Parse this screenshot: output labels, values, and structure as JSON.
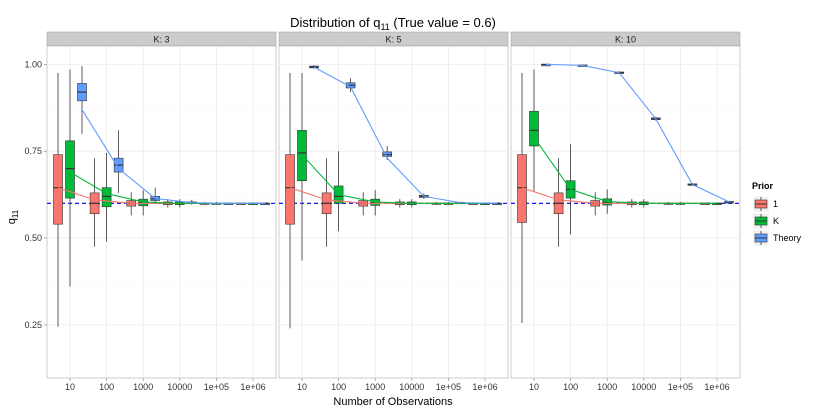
{
  "chart_data": {
    "type": "boxplot",
    "title_main": "Distribution of q",
    "title_sub": "11",
    "title_tail": " (True value = 0.6)",
    "xlabel": "Number of Observations",
    "ylabel_main": "q",
    "ylabel_sub": "11",
    "ylim": [
      0.1,
      1.05
    ],
    "y_ticks": [
      0.25,
      0.5,
      0.75,
      1.0
    ],
    "y_tick_labels": [
      "0.25",
      "0.50",
      "0.75",
      "1.00"
    ],
    "x_ticks": [
      10,
      100,
      1000,
      10000,
      100000,
      1000000
    ],
    "x_tick_labels": [
      "10",
      "100",
      "1000",
      "10000",
      "1e+05",
      "1e+06"
    ],
    "true_value": 0.6,
    "legend": {
      "title": "Prior",
      "items": [
        {
          "label": "1",
          "color": "#F8766D"
        },
        {
          "label": "K",
          "color": "#00BA38"
        },
        {
          "label": "Theory",
          "color": "#619CFF"
        }
      ]
    },
    "colors": {
      "hline": "#0000ff",
      "panel_bg": "#ffffff",
      "grid": "#ebebeb",
      "strip_bg": "#cccccc",
      "line_1": "#F8766D",
      "line_K": "#00BA38",
      "line_Theory": "#619CFF"
    },
    "panels": [
      {
        "strip": "K: 3",
        "series": [
          {
            "name": "1",
            "boxes": [
              {
                "n": 10,
                "lo": 0.245,
                "q1": 0.54,
                "med": 0.645,
                "q3": 0.74,
                "hi": 0.975
              },
              {
                "n": 100,
                "lo": 0.475,
                "q1": 0.57,
                "med": 0.6,
                "q3": 0.63,
                "hi": 0.73
              },
              {
                "n": 1000,
                "lo": 0.565,
                "q1": 0.592,
                "med": 0.6,
                "q3": 0.608,
                "hi": 0.632
              },
              {
                "n": 10000,
                "lo": 0.588,
                "q1": 0.596,
                "med": 0.6,
                "q3": 0.604,
                "hi": 0.612
              },
              {
                "n": 100000,
                "lo": 0.596,
                "q1": 0.599,
                "med": 0.6,
                "q3": 0.601,
                "hi": 0.604
              },
              {
                "n": 1000000,
                "lo": 0.598,
                "q1": 0.5995,
                "med": 0.6,
                "q3": 0.6005,
                "hi": 0.602
              }
            ]
          },
          {
            "name": "K",
            "boxes": [
              {
                "n": 10,
                "lo": 0.36,
                "q1": 0.615,
                "med": 0.7,
                "q3": 0.78,
                "hi": 0.985
              },
              {
                "n": 100,
                "lo": 0.49,
                "q1": 0.59,
                "med": 0.62,
                "q3": 0.645,
                "hi": 0.745
              },
              {
                "n": 1000,
                "lo": 0.565,
                "q1": 0.593,
                "med": 0.603,
                "q3": 0.612,
                "hi": 0.638
              },
              {
                "n": 10000,
                "lo": 0.588,
                "q1": 0.596,
                "med": 0.6,
                "q3": 0.604,
                "hi": 0.612
              },
              {
                "n": 100000,
                "lo": 0.596,
                "q1": 0.599,
                "med": 0.6,
                "q3": 0.601,
                "hi": 0.604
              },
              {
                "n": 1000000,
                "lo": 0.598,
                "q1": 0.5995,
                "med": 0.6,
                "q3": 0.6005,
                "hi": 0.602
              }
            ]
          },
          {
            "name": "Theory",
            "boxes": [
              {
                "n": 10,
                "lo": 0.8,
                "q1": 0.895,
                "med": 0.92,
                "q3": 0.945,
                "hi": 0.995
              },
              {
                "n": 100,
                "lo": 0.63,
                "q1": 0.69,
                "med": 0.71,
                "q3": 0.73,
                "hi": 0.81
              },
              {
                "n": 1000,
                "lo": 0.598,
                "q1": 0.608,
                "med": 0.613,
                "q3": 0.62,
                "hi": 0.645
              },
              {
                "n": 10000,
                "lo": 0.596,
                "q1": 0.6,
                "med": 0.602,
                "q3": 0.604,
                "hi": 0.61
              },
              {
                "n": 100000,
                "lo": 0.598,
                "q1": 0.5995,
                "med": 0.6,
                "q3": 0.6005,
                "hi": 0.602
              },
              {
                "n": 1000000,
                "lo": 0.599,
                "q1": 0.5997,
                "med": 0.6,
                "q3": 0.6003,
                "hi": 0.601
              }
            ]
          }
        ],
        "lines": [
          {
            "name": "1",
            "points": [
              0.645,
              0.61,
              0.6,
              0.6,
              0.6,
              0.6
            ]
          },
          {
            "name": "K",
            "points": [
              0.69,
              0.628,
              0.604,
              0.6,
              0.6,
              0.6
            ]
          },
          {
            "name": "Theory",
            "points": [
              0.87,
              0.7,
              0.614,
              0.602,
              0.6,
              0.6
            ]
          }
        ]
      },
      {
        "strip": "K: 5",
        "series": [
          {
            "name": "1",
            "boxes": [
              {
                "n": 10,
                "lo": 0.24,
                "q1": 0.54,
                "med": 0.645,
                "q3": 0.74,
                "hi": 0.975
              },
              {
                "n": 100,
                "lo": 0.475,
                "q1": 0.57,
                "med": 0.6,
                "q3": 0.63,
                "hi": 0.73
              },
              {
                "n": 1000,
                "lo": 0.565,
                "q1": 0.592,
                "med": 0.6,
                "q3": 0.608,
                "hi": 0.632
              },
              {
                "n": 10000,
                "lo": 0.588,
                "q1": 0.596,
                "med": 0.6,
                "q3": 0.604,
                "hi": 0.612
              },
              {
                "n": 100000,
                "lo": 0.596,
                "q1": 0.599,
                "med": 0.6,
                "q3": 0.601,
                "hi": 0.604
              },
              {
                "n": 1000000,
                "lo": 0.598,
                "q1": 0.5995,
                "med": 0.6,
                "q3": 0.6005,
                "hi": 0.602
              }
            ]
          },
          {
            "name": "K",
            "boxes": [
              {
                "n": 10,
                "lo": 0.435,
                "q1": 0.665,
                "med": 0.745,
                "q3": 0.81,
                "hi": 0.975
              },
              {
                "n": 100,
                "lo": 0.52,
                "q1": 0.6,
                "med": 0.62,
                "q3": 0.65,
                "hi": 0.75
              },
              {
                "n": 1000,
                "lo": 0.565,
                "q1": 0.594,
                "med": 0.602,
                "q3": 0.612,
                "hi": 0.638
              },
              {
                "n": 10000,
                "lo": 0.588,
                "q1": 0.596,
                "med": 0.6,
                "q3": 0.604,
                "hi": 0.612
              },
              {
                "n": 100000,
                "lo": 0.596,
                "q1": 0.599,
                "med": 0.6,
                "q3": 0.601,
                "hi": 0.604
              },
              {
                "n": 1000000,
                "lo": 0.598,
                "q1": 0.5995,
                "med": 0.6,
                "q3": 0.6005,
                "hi": 0.602
              }
            ]
          },
          {
            "name": "Theory",
            "boxes": [
              {
                "n": 10,
                "lo": 0.988,
                "q1": 0.99,
                "med": 0.992,
                "q3": 0.995,
                "hi": 0.998
              },
              {
                "n": 100,
                "lo": 0.92,
                "q1": 0.932,
                "med": 0.94,
                "q3": 0.947,
                "hi": 0.96
              },
              {
                "n": 1000,
                "lo": 0.725,
                "q1": 0.735,
                "med": 0.74,
                "q3": 0.748,
                "hi": 0.765
              },
              {
                "n": 10000,
                "lo": 0.613,
                "q1": 0.617,
                "med": 0.62,
                "q3": 0.623,
                "hi": 0.628
              },
              {
                "n": 100000,
                "lo": 0.6,
                "q1": 0.601,
                "med": 0.602,
                "q3": 0.603,
                "hi": 0.604
              },
              {
                "n": 1000000,
                "lo": 0.599,
                "q1": 0.5997,
                "med": 0.6,
                "q3": 0.6003,
                "hi": 0.601
              }
            ]
          }
        ],
        "lines": [
          {
            "name": "1",
            "points": [
              0.645,
              0.61,
              0.6,
              0.6,
              0.6,
              0.6
            ]
          },
          {
            "name": "K",
            "points": [
              0.74,
              0.625,
              0.604,
              0.6,
              0.6,
              0.6
            ]
          },
          {
            "name": "Theory",
            "points": [
              0.992,
              0.935,
              0.73,
              0.62,
              0.602,
              0.6
            ]
          }
        ]
      },
      {
        "strip": "K: 10",
        "series": [
          {
            "name": "1",
            "boxes": [
              {
                "n": 10,
                "lo": 0.255,
                "q1": 0.545,
                "med": 0.645,
                "q3": 0.74,
                "hi": 0.975
              },
              {
                "n": 100,
                "lo": 0.475,
                "q1": 0.57,
                "med": 0.6,
                "q3": 0.63,
                "hi": 0.73
              },
              {
                "n": 1000,
                "lo": 0.565,
                "q1": 0.592,
                "med": 0.6,
                "q3": 0.608,
                "hi": 0.632
              },
              {
                "n": 10000,
                "lo": 0.588,
                "q1": 0.596,
                "med": 0.6,
                "q3": 0.604,
                "hi": 0.612
              },
              {
                "n": 100000,
                "lo": 0.596,
                "q1": 0.599,
                "med": 0.6,
                "q3": 0.601,
                "hi": 0.604
              },
              {
                "n": 1000000,
                "lo": 0.598,
                "q1": 0.5995,
                "med": 0.6,
                "q3": 0.6005,
                "hi": 0.602
              }
            ]
          },
          {
            "name": "K",
            "boxes": [
              {
                "n": 10,
                "lo": 0.635,
                "q1": 0.765,
                "med": 0.81,
                "q3": 0.865,
                "hi": 0.985
              },
              {
                "n": 100,
                "lo": 0.51,
                "q1": 0.615,
                "med": 0.64,
                "q3": 0.665,
                "hi": 0.77
              },
              {
                "n": 1000,
                "lo": 0.57,
                "q1": 0.595,
                "med": 0.603,
                "q3": 0.613,
                "hi": 0.64
              },
              {
                "n": 10000,
                "lo": 0.588,
                "q1": 0.596,
                "med": 0.6,
                "q3": 0.604,
                "hi": 0.612
              },
              {
                "n": 100000,
                "lo": 0.596,
                "q1": 0.599,
                "med": 0.6,
                "q3": 0.601,
                "hi": 0.604
              },
              {
                "n": 1000000,
                "lo": 0.598,
                "q1": 0.5995,
                "med": 0.6,
                "q3": 0.6005,
                "hi": 0.602
              }
            ]
          },
          {
            "name": "Theory",
            "boxes": [
              {
                "n": 10,
                "lo": 0.998,
                "q1": 0.999,
                "med": 1.0,
                "q3": 1.0,
                "hi": 1.0
              },
              {
                "n": 100,
                "lo": 0.995,
                "q1": 0.996,
                "med": 0.997,
                "q3": 0.998,
                "hi": 0.999
              },
              {
                "n": 1000,
                "lo": 0.972,
                "q1": 0.974,
                "med": 0.976,
                "q3": 0.978,
                "hi": 0.98
              },
              {
                "n": 10000,
                "lo": 0.838,
                "q1": 0.841,
                "med": 0.843,
                "q3": 0.846,
                "hi": 0.849
              },
              {
                "n": 100000,
                "lo": 0.65,
                "q1": 0.652,
                "med": 0.654,
                "q3": 0.656,
                "hi": 0.658
              },
              {
                "n": 1000000,
                "lo": 0.602,
                "q1": 0.603,
                "med": 0.604,
                "q3": 0.605,
                "hi": 0.606
              }
            ]
          }
        ],
        "lines": [
          {
            "name": "1",
            "points": [
              0.645,
              0.61,
              0.6,
              0.6,
              0.6,
              0.6
            ]
          },
          {
            "name": "K",
            "points": [
              0.79,
              0.64,
              0.605,
              0.6,
              0.6,
              0.6
            ]
          },
          {
            "name": "Theory",
            "points": [
              1.0,
              0.997,
              0.976,
              0.843,
              0.654,
              0.604
            ]
          }
        ]
      }
    ]
  }
}
